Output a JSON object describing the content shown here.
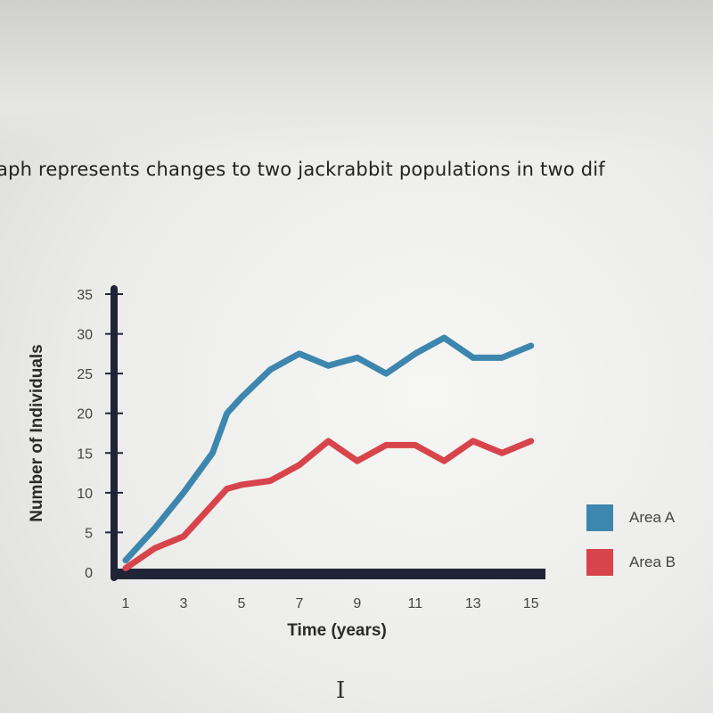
{
  "question": {
    "text": "aph represents changes to two jackrabbit populations in two dif"
  },
  "chart_data": {
    "type": "line",
    "title": "",
    "xlabel": "Time (years)",
    "ylabel": "Number of Individuals",
    "x": [
      1,
      2,
      3,
      4,
      4.5,
      5,
      6,
      7,
      8,
      9,
      10,
      11,
      12,
      13,
      14,
      15
    ],
    "xticks": [
      1,
      3,
      5,
      7,
      9,
      11,
      13,
      15
    ],
    "yticks": [
      0,
      5,
      10,
      15,
      20,
      25,
      30,
      35
    ],
    "xlim": [
      0.6,
      15.5
    ],
    "ylim": [
      0,
      35
    ],
    "grid": false,
    "legend_position": "right",
    "series": [
      {
        "name": "Area A",
        "color": "#3d86ae",
        "values": [
          1.5,
          5.5,
          10,
          15,
          20,
          22,
          25.5,
          27.5,
          26,
          27,
          25,
          27.5,
          29.5,
          27,
          27,
          28.5
        ]
      },
      {
        "name": "Area B",
        "color": "#d8444b",
        "values": [
          0.5,
          3,
          4.5,
          8.5,
          10.5,
          11,
          11.5,
          13.5,
          16.5,
          14,
          16,
          16,
          14,
          16.5,
          15,
          16.5
        ]
      }
    ]
  },
  "cursor": {
    "glyph": "I"
  }
}
